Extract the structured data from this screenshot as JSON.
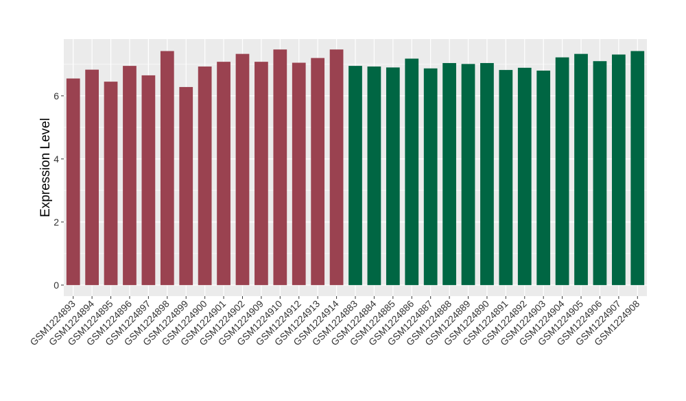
{
  "chart_data": {
    "type": "bar",
    "ylabel": "Expression Level",
    "xlabel": "",
    "ylim": [
      -0.35,
      7.8
    ],
    "yticks": [
      0,
      2,
      4,
      6
    ],
    "grid": true,
    "categories": [
      "GSM1224893",
      "GSM1224894",
      "GSM1224895",
      "GSM1224896",
      "GSM1224897",
      "GSM1224898",
      "GSM1224899",
      "GSM1224900",
      "GSM1224901",
      "GSM1224902",
      "GSM1224909",
      "GSM1224910",
      "GSM1224912",
      "GSM1224913",
      "GSM1224914",
      "GSM1224883",
      "GSM1224884",
      "GSM1224885",
      "GSM1224886",
      "GSM1224887",
      "GSM1224888",
      "GSM1224889",
      "GSM1224890",
      "GSM1224891",
      "GSM1224892",
      "GSM1224903",
      "GSM1224904",
      "GSM1224905",
      "GSM1224906",
      "GSM1224907",
      "GSM1224908"
    ],
    "values": [
      6.55,
      6.83,
      6.45,
      6.95,
      6.65,
      7.42,
      6.28,
      6.93,
      7.08,
      7.33,
      7.08,
      7.47,
      7.05,
      7.2,
      7.47,
      6.95,
      6.93,
      6.9,
      7.18,
      6.87,
      7.04,
      7.01,
      7.04,
      6.82,
      6.89,
      6.8,
      7.22,
      7.33,
      7.1,
      7.31,
      7.42
    ],
    "group_colors": [
      "#9a4250",
      "#006643"
    ],
    "bar_color_index": [
      0,
      0,
      0,
      0,
      0,
      0,
      0,
      0,
      0,
      0,
      0,
      0,
      0,
      0,
      0,
      1,
      1,
      1,
      1,
      1,
      1,
      1,
      1,
      1,
      1,
      1,
      1,
      1,
      1,
      1,
      1
    ],
    "panel_background": "#ebebeb",
    "gridline_color": "#ffffff"
  }
}
